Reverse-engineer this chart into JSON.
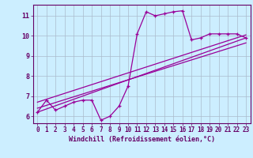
{
  "xlabel": "Windchill (Refroidissement éolien,°C)",
  "bg_color": "#cceeff",
  "line_color": "#990099",
  "grid_color": "#aabbcc",
  "axis_color": "#660066",
  "x_ticks": [
    0,
    1,
    2,
    3,
    4,
    5,
    6,
    7,
    8,
    9,
    10,
    11,
    12,
    13,
    14,
    15,
    16,
    17,
    18,
    19,
    20,
    21,
    22,
    23
  ],
  "y_ticks": [
    6,
    7,
    8,
    9,
    10,
    11
  ],
  "xlim": [
    -0.5,
    23.5
  ],
  "ylim": [
    5.65,
    11.55
  ],
  "series": [
    [
      0,
      6.2
    ],
    [
      1,
      6.8
    ],
    [
      2,
      6.3
    ],
    [
      3,
      6.5
    ],
    [
      4,
      6.7
    ],
    [
      5,
      6.8
    ],
    [
      6,
      6.8
    ],
    [
      7,
      5.8
    ],
    [
      8,
      6.0
    ],
    [
      9,
      6.5
    ],
    [
      10,
      7.5
    ],
    [
      11,
      10.1
    ],
    [
      12,
      11.2
    ],
    [
      13,
      11.0
    ],
    [
      14,
      11.1
    ],
    [
      15,
      11.2
    ],
    [
      16,
      11.25
    ],
    [
      17,
      9.8
    ],
    [
      18,
      9.9
    ],
    [
      19,
      10.1
    ],
    [
      20,
      10.1
    ],
    [
      21,
      10.1
    ],
    [
      22,
      10.1
    ],
    [
      23,
      9.9
    ]
  ],
  "regression_lines": [
    [
      [
        0,
        23
      ],
      [
        6.2,
        9.9
      ]
    ],
    [
      [
        0,
        23
      ],
      [
        6.4,
        9.65
      ]
    ],
    [
      [
        0,
        23
      ],
      [
        6.7,
        10.05
      ]
    ]
  ]
}
